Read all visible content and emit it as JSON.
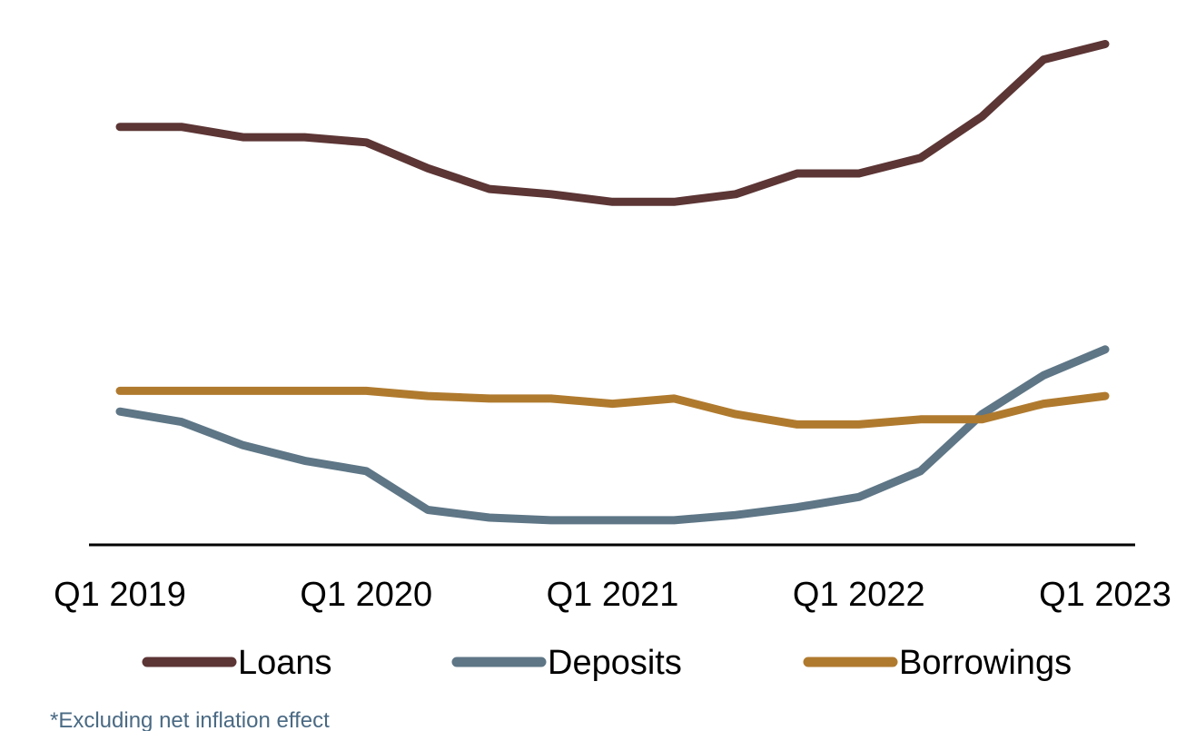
{
  "chart_data": {
    "type": "line",
    "title": "",
    "xlabel": "",
    "ylabel": "",
    "x": [
      "Q1 2019",
      "Q2 2019",
      "Q3 2019",
      "Q4 2019",
      "Q1 2020",
      "Q2 2020",
      "Q3 2020",
      "Q4 2020",
      "Q1 2021",
      "Q2 2021",
      "Q3 2021",
      "Q4 2021",
      "Q1 2022",
      "Q2 2022",
      "Q3 2022",
      "Q4 2022",
      "Q1 2023"
    ],
    "x_tick_labels": [
      "Q1 2019",
      "Q1 2020",
      "Q1 2021",
      "Q1 2022",
      "Q1 2023"
    ],
    "ylim": [
      0,
      100
    ],
    "y_axis_visible": false,
    "grid": false,
    "legend_position": "bottom",
    "series": [
      {
        "name": "Loans",
        "color": "#5c3535",
        "values": [
          79,
          79,
          77,
          77,
          76,
          71,
          67,
          66,
          64.5,
          64.5,
          66,
          70,
          70,
          73,
          81,
          92,
          95
        ]
      },
      {
        "name": "Deposits",
        "color": "#5e7686",
        "values": [
          24,
          22,
          17.5,
          14.5,
          12.5,
          5,
          3.5,
          3,
          3,
          3,
          4,
          5.5,
          7.5,
          12.5,
          23.5,
          31,
          36
        ]
      },
      {
        "name": "Borrowings",
        "color": "#b07a2e",
        "values": [
          28,
          28,
          28,
          28,
          28,
          27,
          26.5,
          26.5,
          25.5,
          26.5,
          23.5,
          21.5,
          21.5,
          22.5,
          22.5,
          25.5,
          27
        ]
      }
    ],
    "footnote": "*Excluding net inflation effect"
  }
}
